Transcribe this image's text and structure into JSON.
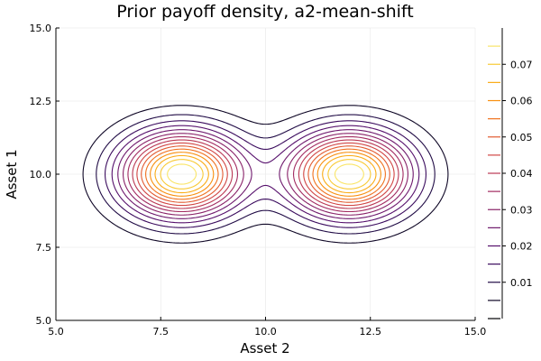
{
  "chart_data": {
    "type": "contour",
    "title": "Prior payoff density, a2-mean-shift",
    "xlabel": "Asset 2",
    "ylabel": "Asset 1",
    "xlim": [
      5.0,
      15.0
    ],
    "ylim": [
      5.0,
      15.0
    ],
    "x_ticks": [
      5.0,
      7.5,
      10.0,
      12.5,
      15.0
    ],
    "y_ticks": [
      5.0,
      7.5,
      10.0,
      12.5,
      15.0
    ],
    "x_tick_labels": [
      "5.0",
      "7.5",
      "10.0",
      "12.5",
      "15.0"
    ],
    "y_tick_labels": [
      "5.0",
      "7.5",
      "10.0",
      "12.5",
      "15.0"
    ],
    "grid": true,
    "legend": "colorbar-right",
    "density_peaks": [
      {
        "x": 8.0,
        "y": 10.0
      },
      {
        "x": 12.0,
        "y": 10.0
      }
    ],
    "levels": [
      0.0,
      0.005,
      0.01,
      0.015,
      0.02,
      0.025,
      0.03,
      0.035,
      0.04,
      0.045,
      0.05,
      0.055,
      0.06,
      0.065,
      0.07,
      0.075
    ],
    "colorbar": {
      "range": [
        0.0,
        0.08
      ],
      "tick_values": [
        0.01,
        0.02,
        0.03,
        0.04,
        0.05,
        0.06,
        0.07
      ],
      "tick_labels": [
        "0.01",
        "0.02",
        "0.03",
        "0.04",
        "0.05",
        "0.06",
        "0.07"
      ]
    },
    "colormap": [
      "#000004",
      "#1b0c41",
      "#4a0c6b",
      "#781c6d",
      "#a52c60",
      "#cf4446",
      "#ed6925",
      "#fb9b06",
      "#f7d13d",
      "#fcffa4"
    ]
  }
}
